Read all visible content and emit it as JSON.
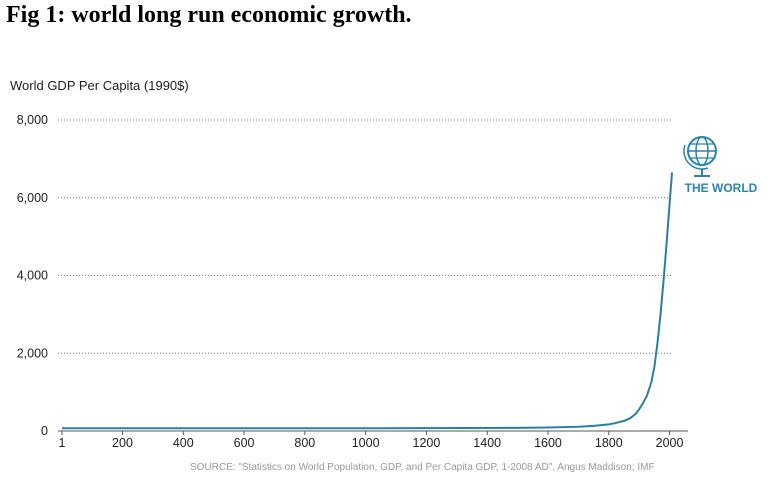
{
  "figure_title": "Fig 1: world long run economic growth.",
  "badge": {
    "icon": "globe-icon",
    "label": "THE WORLD",
    "color": "#2a84b0"
  },
  "source": "SOURCE: \"Statistics on World Population, GDP, and Per Capita GDP, 1-2008 AD\", Angus Maddison; IMF",
  "chart_data": {
    "type": "line",
    "title": "",
    "xlabel": "",
    "ylabel": "World GDP Per Capita (1990$)",
    "xlim": [
      1,
      2008
    ],
    "ylim": [
      0,
      8000
    ],
    "x_ticks": [
      1,
      200,
      400,
      600,
      800,
      1000,
      1200,
      1400,
      1600,
      1800,
      2000
    ],
    "x_tick_labels": [
      "1",
      "200",
      "400",
      "600",
      "800",
      "1000",
      "1200",
      "1400",
      "1600",
      "1800",
      "2000"
    ],
    "y_ticks": [
      0,
      2000,
      4000,
      6000,
      8000
    ],
    "y_tick_labels": [
      "0",
      "2,000",
      "4,000",
      "6,000",
      "8,000"
    ],
    "grid": "horizontal dotted",
    "line_color": "#2a7fa6",
    "series": [
      {
        "x": [
          1,
          1000,
          1500,
          1600,
          1700,
          1750,
          1800,
          1820,
          1850,
          1870,
          1890,
          1900,
          1913,
          1925,
          1940,
          1950,
          1960,
          1970,
          1980,
          1990,
          2000,
          2008
        ],
        "y": [
          70,
          70,
          80,
          90,
          110,
          130,
          170,
          200,
          260,
          330,
          450,
          560,
          720,
          900,
          1250,
          1650,
          2250,
          3000,
          3850,
          4800,
          5850,
          6650
        ]
      }
    ]
  }
}
